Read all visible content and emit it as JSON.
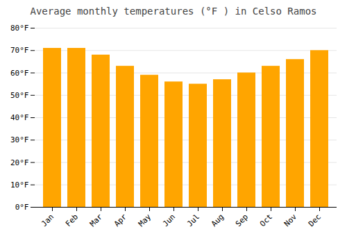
{
  "chart_data": {
    "type": "bar",
    "title": "Average monthly temperatures (°F ) in Celso Ramos",
    "categories": [
      "Jan",
      "Feb",
      "Mar",
      "Apr",
      "May",
      "Jun",
      "Jul",
      "Aug",
      "Sep",
      "Oct",
      "Nov",
      "Dec"
    ],
    "values": [
      71,
      71,
      68,
      63,
      59,
      56,
      55,
      57,
      60,
      63,
      66,
      70
    ],
    "color": "#FFA500",
    "ylim": [
      0,
      80
    ],
    "yticks": [
      {
        "value": 0,
        "label": "0°F"
      },
      {
        "value": 10,
        "label": "10°F"
      },
      {
        "value": 20,
        "label": "20°F"
      },
      {
        "value": 30,
        "label": "30°F"
      },
      {
        "value": 40,
        "label": "40°F"
      },
      {
        "value": 50,
        "label": "50°F"
      },
      {
        "value": 60,
        "label": "60°F"
      },
      {
        "value": 70,
        "label": "70°F"
      },
      {
        "value": 80,
        "label": "80°F"
      }
    ],
    "grid": true
  }
}
